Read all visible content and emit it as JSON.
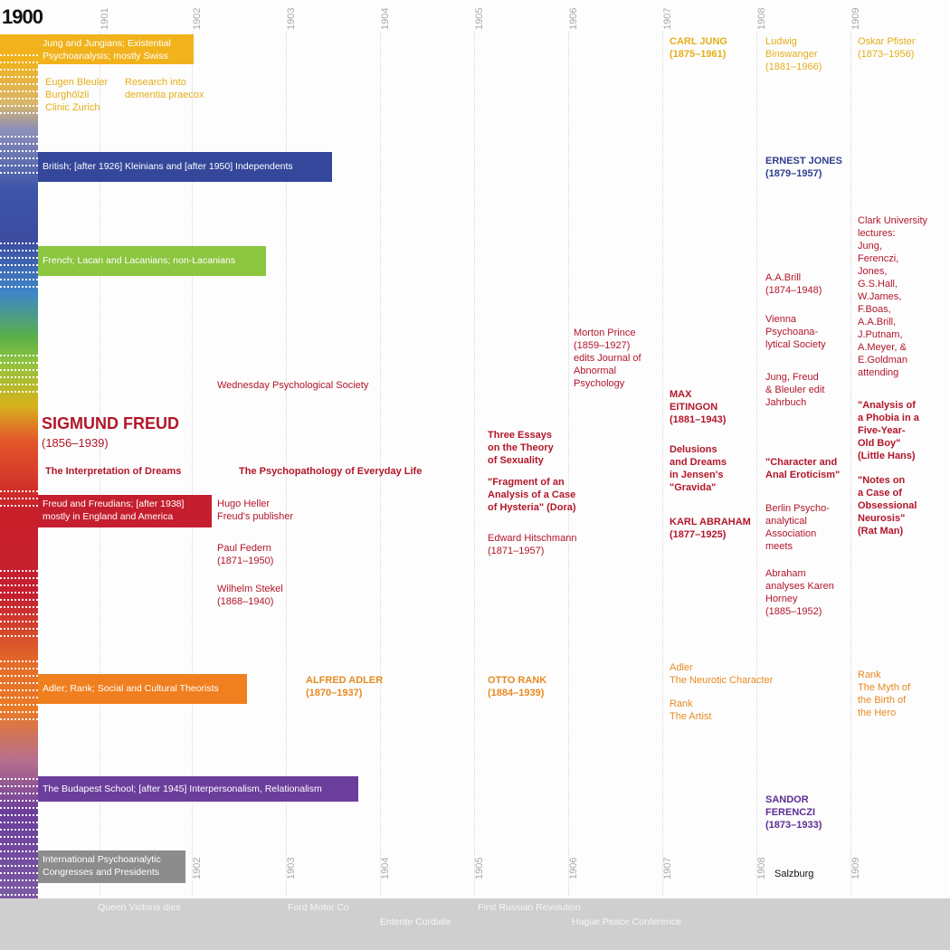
{
  "title_year": "1900",
  "years": [
    "1901",
    "1902",
    "1903",
    "1904",
    "1905",
    "1906",
    "1907",
    "1908",
    "1909"
  ],
  "bottom_years": [
    "1902",
    "1903",
    "1904",
    "1905",
    "1906",
    "1907",
    "1908",
    "1909"
  ],
  "colors": {
    "yellow": "#f1b21c",
    "blue": "#34479b",
    "green": "#8cc53f",
    "red": "#c51f2f",
    "orange": "#ef7f1f",
    "purple": "#6b3e9b",
    "gray": "#8c8c8c",
    "band": "#cfcfcf"
  },
  "bars": {
    "jung": "Jung and Jungians; Existential\nPsychoanalysis; mostly Swiss",
    "british": "British; [after 1926] Kleinians and [after 1950] Independents",
    "french": "French; Lacan and Lacanians; non-Lacanians",
    "freud": "Freud and Freudians; [after 1938]\nmostly in England and America",
    "adler": "Adler; Rank; Social and Cultural Theorists",
    "budapest": "The Budapest School; [after 1945] Interpersonalism, Relationalism",
    "international": "International Psychoanalytic\nCongresses and Presidents"
  },
  "entries": {
    "bleuler": "Eugen Bleuler\nBurghölzli\nClinic Zurich",
    "dementia": "Research into\ndementia praecox",
    "carl_jung": "CARL JUNG\n(1875–1961)",
    "binswanger": "Ludwig\nBinswanger\n(1881–1966)",
    "pfister": "Oskar Pfister\n(1873–1956)",
    "ernest_jones": "ERNEST JONES\n(1879–1957)",
    "clark": "Clark University\nlectures:\nJung,\nFerenczi,\nJones,\nG.S.Hall,\nW.James,\nF.Boas,\nA.A.Brill,\nJ.Putnam,\nA.Meyer, &\nE.Goldman\nattending",
    "brill": "A.A.Brill\n(1874–1948)",
    "vienna": "Vienna\nPsychoana-\nlytical Society",
    "jahrbuch": "Jung, Freud\n& Bleuler edit\nJahrbuch",
    "morton": "Morton Prince\n(1859–1927)\nedits Journal of\nAbnormal\nPsychology",
    "wednesday": "Wednesday Psychological Society",
    "freud_name": "SIGMUND FREUD",
    "freud_years": "(1856–1939)",
    "dreams": "The Interpretation of Dreams",
    "psychopath": "The Psychopathology of Everyday Life",
    "three_essays": "Three Essays\non the Theory\nof Sexuality",
    "dora": "\"Fragment of an\nAnalysis of a Case\nof Hysteria\" (Dora)",
    "hitschmann": "Edward Hitschmann\n(1871–1957)",
    "eitingon": "MAX\nEITINGON\n(1881–1943)",
    "delusions": "Delusions\nand Dreams\nin Jensen's\n\"Gravida\"",
    "abraham": "KARL ABRAHAM\n(1877–1925)",
    "character": "\"Character and\nAnal Eroticism\"",
    "berlin": "Berlin Psycho-\nanalytical\nAssociation\nmeets",
    "horney": "Abraham\nanalyses Karen\nHorney\n(1885–1952)",
    "little_hans": "\"Analysis of\na Phobia in a\nFive-Year-\nOld Boy\"\n(Little Hans)",
    "rat_man": "\"Notes on\na Case of\nObsessional\nNeurosis\"\n(Rat Man)",
    "heller": "Hugo Heller\nFreud's publisher",
    "federn": "Paul Federn\n(1871–1950)",
    "stekel": "Wilhelm Stekel\n(1868–1940)",
    "alfred_adler": "ALFRED ADLER\n(1870–1937)",
    "otto_rank": "OTTO RANK\n(1884–1939)",
    "neurotic": "Adler\nThe Neurotic Character",
    "artist": "Rank\nThe Artist",
    "myth": "Rank\nThe Myth of\nthe Birth of\nthe Hero",
    "ferenczi": "SANDOR\nFERENCZI\n(1873–1933)",
    "salzburg": "Salzburg"
  },
  "events": {
    "victoria": "Queen Victoria dies",
    "ford": "Ford Motor Co",
    "entente": "Entente Cordiale",
    "russian": "First Russian Revolution",
    "hague": "Hague Peace Conference"
  }
}
